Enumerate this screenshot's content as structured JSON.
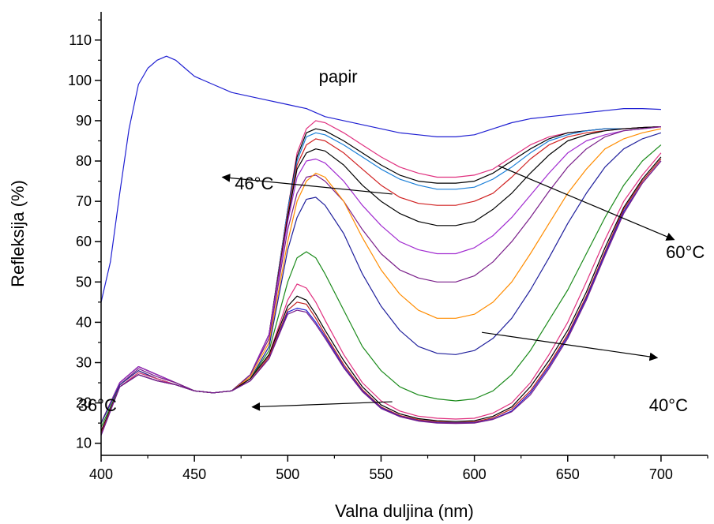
{
  "chart_data": {
    "type": "line",
    "xlabel": "Valna duljina (nm)",
    "ylabel": "Refleksija (%)",
    "xlim": [
      400,
      725
    ],
    "ylim": [
      7,
      117
    ],
    "xticks": [
      400,
      450,
      500,
      550,
      600,
      650,
      700
    ],
    "yticks": [
      10,
      20,
      30,
      40,
      50,
      60,
      70,
      80,
      90,
      100,
      110
    ],
    "grid": false,
    "series": [
      {
        "name": "papir",
        "color": "#1f1fd2",
        "x": [
          400,
          405,
          410,
          415,
          420,
          425,
          430,
          435,
          440,
          445,
          450,
          460,
          470,
          480,
          490,
          500,
          510,
          520,
          530,
          540,
          550,
          560,
          570,
          580,
          590,
          600,
          610,
          620,
          630,
          640,
          650,
          660,
          670,
          680,
          690,
          700
        ],
        "y": [
          45,
          55,
          72,
          88,
          99,
          103,
          105,
          106,
          105,
          103,
          101,
          99,
          97,
          96,
          95,
          94,
          93,
          91,
          90,
          89,
          88,
          87,
          86.5,
          86,
          86,
          86.5,
          88,
          89.5,
          90.5,
          91,
          91.5,
          92,
          92.5,
          93,
          93,
          92.8
        ]
      },
      {
        "color": "#e0307f",
        "x": [
          400,
          410,
          420,
          430,
          440,
          450,
          460,
          470,
          480,
          490,
          500,
          505,
          510,
          515,
          520,
          530,
          540,
          550,
          560,
          570,
          580,
          590,
          600,
          610,
          620,
          630,
          640,
          650,
          660,
          670,
          680,
          690,
          700
        ],
        "y": [
          15,
          25,
          29,
          27,
          25,
          23,
          22.5,
          23,
          27,
          37,
          68,
          82,
          88,
          90,
          89.5,
          87,
          84,
          81,
          78.5,
          77,
          76,
          76,
          76.5,
          78,
          81,
          84,
          86,
          87,
          87.5,
          88,
          88,
          88.3,
          88.5
        ]
      },
      {
        "color": "#000000",
        "x": [
          400,
          410,
          420,
          430,
          440,
          450,
          460,
          470,
          480,
          490,
          500,
          505,
          510,
          515,
          520,
          530,
          540,
          550,
          560,
          570,
          580,
          590,
          600,
          610,
          620,
          630,
          640,
          650,
          660,
          670,
          680,
          690,
          700
        ],
        "y": [
          15,
          25,
          29,
          27,
          25,
          23,
          22.5,
          23,
          27,
          37,
          68,
          81,
          87,
          88,
          87.5,
          85,
          82,
          79,
          76.5,
          75,
          74.5,
          74.5,
          75,
          77,
          80,
          83,
          85.5,
          87,
          87.5,
          88,
          88,
          88.3,
          88.5
        ]
      },
      {
        "color": "#1a7fd8",
        "x": [
          400,
          410,
          420,
          430,
          440,
          450,
          460,
          470,
          480,
          490,
          500,
          505,
          510,
          515,
          520,
          530,
          540,
          550,
          560,
          570,
          580,
          590,
          600,
          610,
          620,
          630,
          640,
          650,
          660,
          670,
          680,
          690,
          700
        ],
        "y": [
          15,
          25,
          29,
          27,
          25,
          23,
          22.5,
          23,
          27,
          37,
          68,
          80,
          86,
          87,
          86.5,
          84,
          81,
          78,
          75.5,
          74,
          73,
          73,
          73.5,
          75.5,
          78.5,
          82,
          85,
          86.5,
          87.5,
          88,
          88,
          88.3,
          88.5
        ]
      },
      {
        "color": "#d02020",
        "x": [
          400,
          410,
          420,
          430,
          440,
          450,
          460,
          470,
          480,
          490,
          500,
          505,
          510,
          515,
          520,
          530,
          540,
          550,
          560,
          570,
          580,
          590,
          600,
          610,
          620,
          630,
          640,
          650,
          660,
          670,
          680,
          690,
          700
        ],
        "y": [
          15,
          25,
          29,
          27,
          25,
          23,
          22.5,
          23,
          27,
          37,
          67,
          79,
          84,
          85.5,
          85,
          82,
          78,
          74,
          71,
          69.5,
          69,
          69,
          70,
          72,
          76,
          80.5,
          84,
          86,
          87,
          87.5,
          88,
          88.3,
          88.5
        ]
      },
      {
        "color": "#000000",
        "x": [
          400,
          410,
          420,
          430,
          440,
          450,
          460,
          470,
          480,
          490,
          500,
          505,
          510,
          515,
          520,
          530,
          540,
          550,
          560,
          570,
          580,
          590,
          600,
          610,
          620,
          630,
          640,
          650,
          660,
          670,
          680,
          690,
          700
        ],
        "y": [
          15,
          25,
          29,
          27,
          25,
          23,
          22.5,
          23,
          27,
          37,
          66,
          78,
          82,
          83,
          82.5,
          79,
          74,
          70,
          67,
          65,
          64,
          64,
          65,
          68,
          72,
          77,
          81.5,
          85,
          86.5,
          87.5,
          88,
          88.3,
          88.5
        ]
      },
      {
        "color": "#a12bd0",
        "x": [
          400,
          410,
          420,
          430,
          440,
          450,
          460,
          470,
          480,
          490,
          500,
          505,
          510,
          515,
          520,
          530,
          540,
          550,
          560,
          570,
          580,
          590,
          600,
          610,
          620,
          630,
          640,
          650,
          660,
          670,
          680,
          690,
          700
        ],
        "y": [
          15,
          25,
          29,
          27,
          25,
          23,
          22.5,
          23,
          27,
          37,
          65,
          76,
          80,
          80.5,
          79.5,
          75,
          69,
          64,
          60,
          58,
          57,
          57,
          58.5,
          61.5,
          66,
          71.5,
          77,
          82,
          85,
          86.5,
          87.5,
          88,
          88.5
        ]
      },
      {
        "color": "#7a1f8a",
        "x": [
          400,
          410,
          420,
          430,
          440,
          450,
          460,
          470,
          480,
          490,
          500,
          505,
          510,
          515,
          520,
          530,
          540,
          550,
          560,
          570,
          580,
          590,
          600,
          610,
          620,
          630,
          640,
          650,
          660,
          670,
          680,
          690,
          700
        ],
        "y": [
          15,
          24.5,
          28.5,
          26.5,
          25,
          23,
          22.5,
          23,
          27,
          36,
          63,
          72,
          76,
          76.5,
          75,
          70,
          63,
          57,
          53,
          51,
          50,
          50,
          51.5,
          55,
          60,
          66,
          72.5,
          78.5,
          83,
          86,
          87.5,
          88,
          88.5
        ]
      },
      {
        "color": "#ff8c00",
        "x": [
          400,
          410,
          420,
          430,
          440,
          450,
          460,
          470,
          480,
          490,
          500,
          505,
          510,
          515,
          520,
          530,
          540,
          550,
          560,
          570,
          580,
          590,
          600,
          610,
          620,
          630,
          640,
          650,
          660,
          670,
          680,
          690,
          700
        ],
        "y": [
          15,
          24.5,
          28,
          26,
          24.5,
          23,
          22.5,
          23,
          26.5,
          35,
          60,
          70,
          75,
          77,
          76,
          70,
          61,
          53,
          47,
          43,
          41,
          41,
          42,
          45,
          50,
          57,
          64.5,
          72,
          78,
          83,
          85.5,
          87,
          88
        ]
      },
      {
        "color": "#1f1f9c",
        "x": [
          400,
          410,
          420,
          430,
          440,
          450,
          460,
          470,
          480,
          490,
          500,
          505,
          510,
          515,
          520,
          530,
          540,
          550,
          560,
          570,
          580,
          590,
          600,
          610,
          620,
          630,
          640,
          650,
          660,
          670,
          680,
          690,
          700
        ],
        "y": [
          15,
          24.5,
          28,
          26,
          24.5,
          23,
          22.5,
          23,
          26,
          34,
          58,
          66,
          70.5,
          71,
          69,
          62,
          52,
          44,
          38,
          34,
          32.3,
          32,
          33,
          36,
          41,
          48,
          56,
          64.5,
          72,
          78.5,
          83,
          85.5,
          87
        ]
      },
      {
        "color": "#1a8a1a",
        "x": [
          400,
          410,
          420,
          430,
          440,
          450,
          460,
          470,
          480,
          490,
          500,
          505,
          510,
          515,
          520,
          530,
          540,
          550,
          560,
          570,
          580,
          590,
          600,
          610,
          620,
          630,
          640,
          650,
          660,
          670,
          680,
          690,
          700
        ],
        "y": [
          14,
          24,
          27.5,
          26,
          24.5,
          23,
          22.5,
          23,
          26,
          33,
          50,
          56,
          57.5,
          56,
          52,
          43,
          34,
          28,
          24,
          22,
          21,
          20.5,
          21,
          23,
          27,
          33,
          40.5,
          48,
          57,
          66,
          74,
          80,
          84
        ]
      },
      {
        "color": "#e0307f",
        "x": [
          400,
          410,
          420,
          430,
          440,
          450,
          460,
          470,
          480,
          490,
          500,
          505,
          510,
          515,
          520,
          530,
          540,
          550,
          560,
          570,
          580,
          590,
          600,
          610,
          620,
          630,
          640,
          650,
          660,
          670,
          680,
          690,
          700
        ],
        "y": [
          13,
          24,
          27.5,
          26,
          24.5,
          23,
          22.5,
          23,
          26,
          32,
          45.5,
          49.5,
          48.5,
          45,
          40.5,
          32,
          25,
          20.5,
          18,
          16.7,
          16.2,
          16,
          16.2,
          17.5,
          20,
          25,
          32,
          40,
          50,
          60.5,
          70,
          76.5,
          82
        ]
      },
      {
        "color": "#000000",
        "x": [
          400,
          410,
          420,
          430,
          440,
          450,
          460,
          470,
          480,
          490,
          500,
          505,
          510,
          515,
          520,
          530,
          540,
          550,
          560,
          570,
          580,
          590,
          600,
          610,
          620,
          630,
          640,
          650,
          660,
          670,
          680,
          690,
          700
        ],
        "y": [
          13,
          24,
          27,
          25.5,
          24.5,
          23,
          22.5,
          23,
          26,
          32,
          44,
          46.5,
          45.5,
          42,
          38,
          30.5,
          24,
          19.5,
          17.3,
          16.1,
          15.6,
          15.4,
          15.6,
          16.7,
          19,
          24,
          30.5,
          38,
          47.5,
          58.5,
          68.5,
          75.5,
          81
        ]
      },
      {
        "color": "#c02020",
        "x": [
          400,
          410,
          420,
          430,
          440,
          450,
          460,
          470,
          480,
          490,
          500,
          505,
          510,
          515,
          520,
          530,
          540,
          550,
          560,
          570,
          580,
          590,
          600,
          610,
          620,
          630,
          640,
          650,
          660,
          670,
          680,
          690,
          700
        ],
        "y": [
          12.5,
          24,
          27,
          25.5,
          24.5,
          23,
          22.5,
          23,
          25.5,
          31.5,
          43,
          45,
          44.5,
          41,
          37,
          29.5,
          23.3,
          19,
          16.9,
          15.8,
          15.3,
          15.1,
          15.3,
          16.3,
          18.5,
          23,
          29.5,
          37,
          46.5,
          57.5,
          68,
          75,
          80.5
        ]
      },
      {
        "color": "#1f1fd2",
        "x": [
          400,
          410,
          420,
          430,
          440,
          450,
          460,
          470,
          480,
          490,
          500,
          505,
          510,
          515,
          520,
          530,
          540,
          550,
          560,
          570,
          580,
          590,
          600,
          610,
          620,
          630,
          640,
          650,
          660,
          670,
          680,
          690,
          700
        ],
        "y": [
          12,
          24,
          27,
          25.5,
          24.5,
          23,
          22.5,
          23,
          25.5,
          31,
          42.5,
          43.5,
          43,
          40,
          36.5,
          29,
          23,
          18.8,
          16.7,
          15.6,
          15.1,
          15,
          15.1,
          16,
          18,
          22.5,
          29,
          36.5,
          46,
          57,
          67.5,
          74.5,
          80
        ]
      },
      {
        "color": "#7a1f8a",
        "x": [
          400,
          410,
          420,
          430,
          440,
          450,
          460,
          470,
          480,
          490,
          500,
          505,
          510,
          515,
          520,
          530,
          540,
          550,
          560,
          570,
          580,
          590,
          600,
          610,
          620,
          630,
          640,
          650,
          660,
          670,
          680,
          690,
          700
        ],
        "y": [
          12,
          24,
          27,
          25.5,
          24.5,
          23,
          22.5,
          23,
          25.5,
          31,
          42,
          43,
          42.5,
          39.5,
          36,
          28.7,
          22.8,
          18.6,
          16.6,
          15.5,
          15,
          14.9,
          15,
          15.9,
          17.8,
          22,
          28.5,
          36,
          45.5,
          56.5,
          67,
          74.5,
          80
        ]
      }
    ],
    "annotations": [
      {
        "text": "papir",
        "x": 527,
        "y": 101
      },
      {
        "text": "46°C",
        "x": 482,
        "y": 74.5
      },
      {
        "text": "60°C",
        "x": 713,
        "y": 57.5
      },
      {
        "text": "40°C",
        "x": 704,
        "y": 19.5
      },
      {
        "text": "36°C",
        "x": 398,
        "y": 19.5
      }
    ],
    "arrows": [
      {
        "from": [
          556,
          71.8
        ],
        "to": [
          465,
          76
        ]
      },
      {
        "from": [
          613,
          78.8
        ],
        "to": [
          707,
          60.5
        ]
      },
      {
        "from": [
          604,
          37.5
        ],
        "to": [
          698,
          31.2
        ]
      },
      {
        "from": [
          556,
          20.3
        ],
        "to": [
          481,
          19
        ]
      }
    ]
  }
}
